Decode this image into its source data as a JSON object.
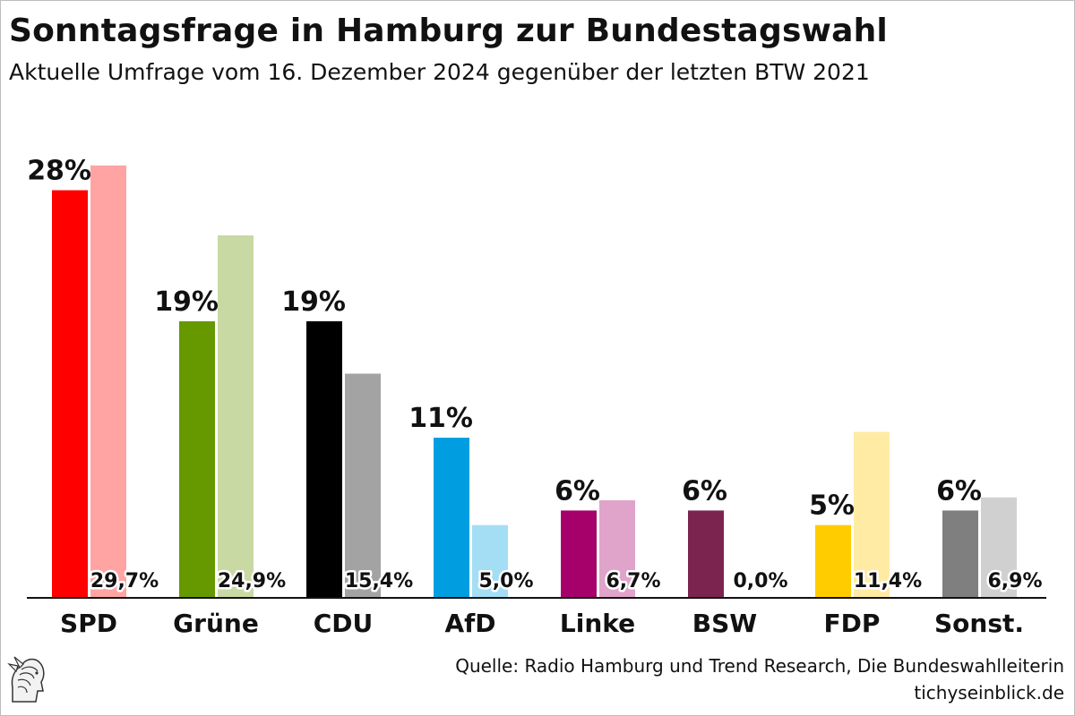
{
  "chart_data": {
    "type": "bar",
    "title": "Sonntagsfrage in Hamburg zur Bundestagswahl",
    "subtitle": "Aktuelle Umfrage vom 16. Dezember 2024 gegenüber der letzten BTW 2021",
    "categories": [
      "SPD",
      "Grüne",
      "CDU",
      "AfD",
      "Linke",
      "BSW",
      "FDP",
      "Sonst."
    ],
    "series": [
      {
        "values": [
          28,
          19,
          19,
          11,
          6,
          6,
          5,
          6
        ],
        "labels": [
          "28%",
          "19%",
          "19%",
          "11%",
          "6%",
          "6%",
          "5%",
          "6%"
        ],
        "colors": [
          "#ff0000",
          "#669900",
          "#000000",
          "#009ee0",
          "#a6006b",
          "#7b2450",
          "#ffcc00",
          "#7f7f7f"
        ]
      },
      {
        "values": [
          29.7,
          24.9,
          15.4,
          5.0,
          6.7,
          0.0,
          11.4,
          6.9
        ],
        "labels": [
          "29,7%",
          "24,9%",
          "15,4%",
          "5,0%",
          "6,7%",
          "0,0%",
          "11,4%",
          "6,9%"
        ],
        "colors": [
          "#ffa3a3",
          "#c8d9a3",
          "#a3a3a3",
          "#a3def5",
          "#e0a3c9",
          "#ffffff",
          "#ffeba3",
          "#d0d0d0"
        ]
      }
    ],
    "ylim": [
      0,
      30
    ],
    "grid": false,
    "legend": "none"
  },
  "footer": {
    "source": "Quelle: Radio Hamburg und Trend Research, Die Bundeswahlleiterin",
    "site": "tichyseinblick.de"
  },
  "logo": {
    "icon": "hermes-head-logo"
  }
}
